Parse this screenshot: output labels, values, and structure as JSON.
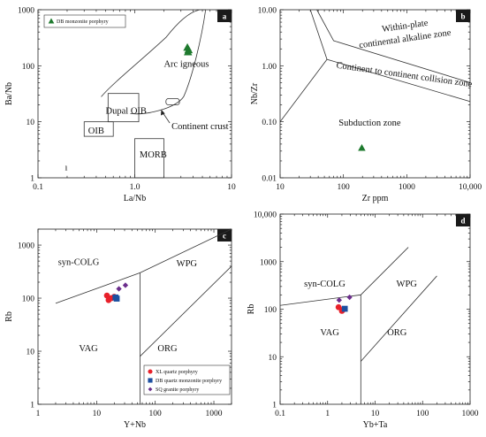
{
  "figure": {
    "width": 550,
    "height": 494
  },
  "chart_data": [
    {
      "id": "a",
      "type": "scatter",
      "xscale": "log",
      "yscale": "log",
      "xlim": [
        0.1,
        10
      ],
      "ylim": [
        1,
        1000
      ],
      "xlabel": "La/Nb",
      "ylabel": "Ba/Nb",
      "xticks": [
        {
          "v": 0.1,
          "label": "0.1"
        },
        {
          "v": 1,
          "label": "1.0"
        },
        {
          "v": 10,
          "label": "10"
        }
      ],
      "yticks": [
        {
          "v": 1,
          "label": "1"
        },
        {
          "v": 10,
          "label": "10"
        },
        {
          "v": 100,
          "label": "100"
        },
        {
          "v": 1000,
          "label": "1000"
        }
      ],
      "legend": {
        "position": "top-left",
        "entries": [
          {
            "label": "DB monzonite porphyry",
            "marker": "triangle",
            "color": "#1e7a2e"
          }
        ]
      },
      "series": [
        {
          "name": "DB monzonite porphyry",
          "marker": "triangle",
          "color": "#1e7a2e",
          "points": [
            [
              3.5,
              210
            ],
            [
              3.6,
              190
            ],
            [
              3.55,
              175
            ]
          ]
        }
      ],
      "annotations": [
        "Arc igneous",
        "Dupal OIB",
        "OIB",
        "MORB",
        "Continent crust"
      ],
      "stray_text": "ı"
    },
    {
      "id": "b",
      "type": "scatter",
      "xscale": "log",
      "yscale": "log",
      "xlim": [
        10,
        10000
      ],
      "ylim": [
        0.01,
        10
      ],
      "xlabel": "Zr ppm",
      "ylabel": "Nb/Zr",
      "xticks": [
        {
          "v": 10,
          "label": "10"
        },
        {
          "v": 100,
          "label": "100"
        },
        {
          "v": 1000,
          "label": "1000"
        },
        {
          "v": 10000,
          "label": "10,000"
        }
      ],
      "yticks": [
        {
          "v": 0.01,
          "label": "0.01"
        },
        {
          "v": 0.1,
          "label": "0.10"
        },
        {
          "v": 1,
          "label": "1.00"
        },
        {
          "v": 10,
          "label": "10.00"
        }
      ],
      "series": [
        {
          "name": "DB monzonite porphyry",
          "marker": "triangle",
          "color": "#1e7a2e",
          "points": [
            [
              195,
              0.034
            ]
          ]
        }
      ],
      "annotations": [
        "Within-plate",
        "continental alkaline zone",
        "Continent to continent collision zone",
        "Subduction zone"
      ]
    },
    {
      "id": "c",
      "type": "scatter",
      "xscale": "log",
      "yscale": "log",
      "xlim": [
        1,
        2000
      ],
      "ylim": [
        1,
        2000
      ],
      "xlabel": "Y+Nb",
      "ylabel": "Rb",
      "xticks": [
        {
          "v": 1,
          "label": "1"
        },
        {
          "v": 10,
          "label": "10"
        },
        {
          "v": 100,
          "label": "100"
        },
        {
          "v": 1000,
          "label": "1000"
        }
      ],
      "yticks": [
        {
          "v": 1,
          "label": "1"
        },
        {
          "v": 10,
          "label": "10"
        },
        {
          "v": 100,
          "label": "100"
        },
        {
          "v": 1000,
          "label": "1000"
        }
      ],
      "legend": {
        "position": "bottom-right",
        "entries": [
          {
            "label": "XL quartz porphyry",
            "marker": "circle",
            "color": "#e8202a"
          },
          {
            "label": "DB quartz monzonite porphyry",
            "marker": "square",
            "color": "#1c4fa0"
          },
          {
            "label": "SQ granite porphyry",
            "marker": "diamond",
            "color": "#6b2d8c"
          }
        ]
      },
      "series": [
        {
          "name": "XL quartz porphyry",
          "marker": "circle",
          "color": "#e8202a",
          "points": [
            [
              15,
              112
            ],
            [
              16,
              92
            ],
            [
              18,
              100
            ],
            [
              20,
              106
            ]
          ]
        },
        {
          "name": "DB quartz monzonite porphyry",
          "marker": "square",
          "color": "#1c4fa0",
          "points": [
            [
              21,
              103
            ],
            [
              22,
              98
            ]
          ]
        },
        {
          "name": "SQ granite porphyry",
          "marker": "diamond",
          "color": "#6b2d8c",
          "points": [
            [
              24,
              150
            ],
            [
              31,
              175
            ]
          ]
        }
      ],
      "annotations": [
        "syn-COLG",
        "WPG",
        "VAG",
        "ORG"
      ]
    },
    {
      "id": "d",
      "type": "scatter",
      "xscale": "log",
      "yscale": "log",
      "xlim": [
        0.1,
        1000
      ],
      "ylim": [
        1,
        10000
      ],
      "xlabel": "Yb+Ta",
      "ylabel": "Rb",
      "xticks": [
        {
          "v": 0.1,
          "label": "0.1"
        },
        {
          "v": 1,
          "label": "1"
        },
        {
          "v": 10,
          "label": "10"
        },
        {
          "v": 100,
          "label": "100"
        },
        {
          "v": 1000,
          "label": "1000"
        }
      ],
      "yticks": [
        {
          "v": 1,
          "label": "1"
        },
        {
          "v": 10,
          "label": "10"
        },
        {
          "v": 100,
          "label": "100"
        },
        {
          "v": 1000,
          "label": "1000"
        },
        {
          "v": 10000,
          "label": "10,000"
        }
      ],
      "series": [
        {
          "name": "XL quartz porphyry",
          "marker": "circle",
          "color": "#e8202a",
          "points": [
            [
              1.7,
              110
            ],
            [
              2.0,
              92
            ],
            [
              2.2,
              100
            ]
          ]
        },
        {
          "name": "DB quartz monzonite porphyry",
          "marker": "square",
          "color": "#1c4fa0",
          "points": [
            [
              2.3,
              102
            ]
          ]
        },
        {
          "name": "SQ granite porphyry",
          "marker": "diamond",
          "color": "#6b2d8c",
          "points": [
            [
              1.75,
              155
            ],
            [
              2.9,
              178
            ]
          ]
        }
      ],
      "annotations": [
        "syn-COLG",
        "WPG",
        "VAG",
        "ORG"
      ]
    }
  ]
}
